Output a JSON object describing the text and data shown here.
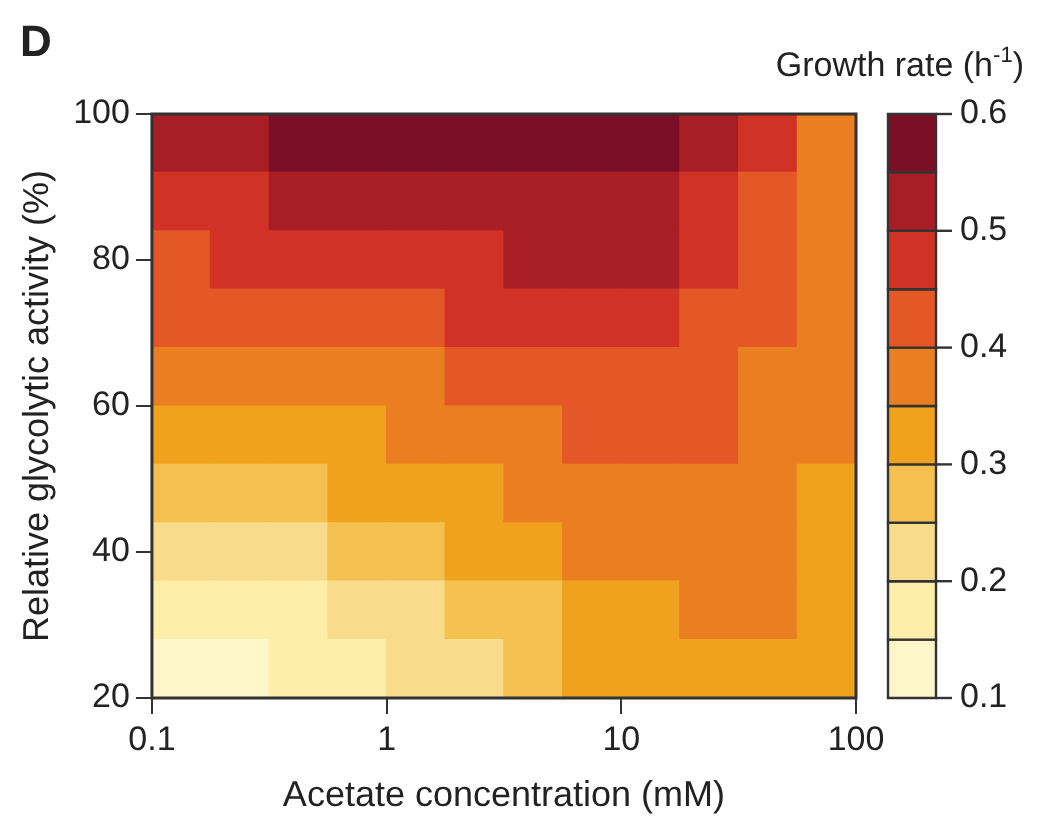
{
  "chart_data": {
    "type": "heatmap",
    "xlabel": "Acetate concentration (mM)",
    "ylabel": "Relative glycolytic activity (%)",
    "clabel": "Growth rate (h$^{-1}$)",
    "annotations": [
      "D"
    ],
    "log": "x",
    "x": [
      0.133,
      0.237,
      0.422,
      0.75,
      1.33,
      2.37,
      4.22,
      7.5,
      13.3,
      23.7,
      42.2,
      75
    ],
    "y": [
      96,
      88,
      80,
      72,
      64,
      56,
      48,
      40,
      32,
      24
    ],
    "xlim": [
      0.1,
      100
    ],
    "xticks": [
      0.1,
      1,
      10,
      100
    ],
    "ylim": [
      20,
      100
    ],
    "yticks": [
      20,
      40,
      60,
      80,
      100
    ],
    "clim": [
      0.1,
      0.6
    ],
    "cticks": [
      0.1,
      0.2,
      0.3,
      0.4,
      0.5,
      0.6
    ],
    "colors": [
      "#fdf6c8",
      "#fdefaa",
      "#f8dc8c",
      "#f4c050",
      "#f0a21e",
      "#ea7f22",
      "#e45726",
      "#d03226",
      "#a81e24",
      "#7a0f26"
    ],
    "cells": [
      [
        0.525,
        0.525,
        0.575,
        0.575,
        0.575,
        0.575,
        0.575,
        0.575,
        0.575,
        0.525,
        0.475,
        0.375
      ],
      [
        0.475,
        0.475,
        0.525,
        0.525,
        0.525,
        0.525,
        0.525,
        0.525,
        0.525,
        0.475,
        0.425,
        0.375
      ],
      [
        0.425,
        0.475,
        0.475,
        0.475,
        0.475,
        0.475,
        0.525,
        0.525,
        0.525,
        0.475,
        0.425,
        0.375
      ],
      [
        0.425,
        0.425,
        0.425,
        0.425,
        0.425,
        0.475,
        0.475,
        0.475,
        0.475,
        0.425,
        0.425,
        0.375
      ],
      [
        0.375,
        0.375,
        0.375,
        0.375,
        0.375,
        0.425,
        0.425,
        0.425,
        0.425,
        0.425,
        0.375,
        0.375
      ],
      [
        0.325,
        0.325,
        0.325,
        0.325,
        0.375,
        0.375,
        0.375,
        0.425,
        0.425,
        0.425,
        0.375,
        0.375
      ],
      [
        0.275,
        0.275,
        0.275,
        0.325,
        0.325,
        0.325,
        0.375,
        0.375,
        0.375,
        0.375,
        0.375,
        0.325
      ],
      [
        0.225,
        0.225,
        0.225,
        0.275,
        0.275,
        0.325,
        0.325,
        0.375,
        0.375,
        0.375,
        0.375,
        0.325
      ],
      [
        0.175,
        0.175,
        0.175,
        0.225,
        0.225,
        0.275,
        0.275,
        0.325,
        0.325,
        0.375,
        0.375,
        0.325
      ],
      [
        0.125,
        0.125,
        0.175,
        0.175,
        0.225,
        0.225,
        0.275,
        0.325,
        0.325,
        0.325,
        0.325,
        0.325
      ]
    ]
  }
}
